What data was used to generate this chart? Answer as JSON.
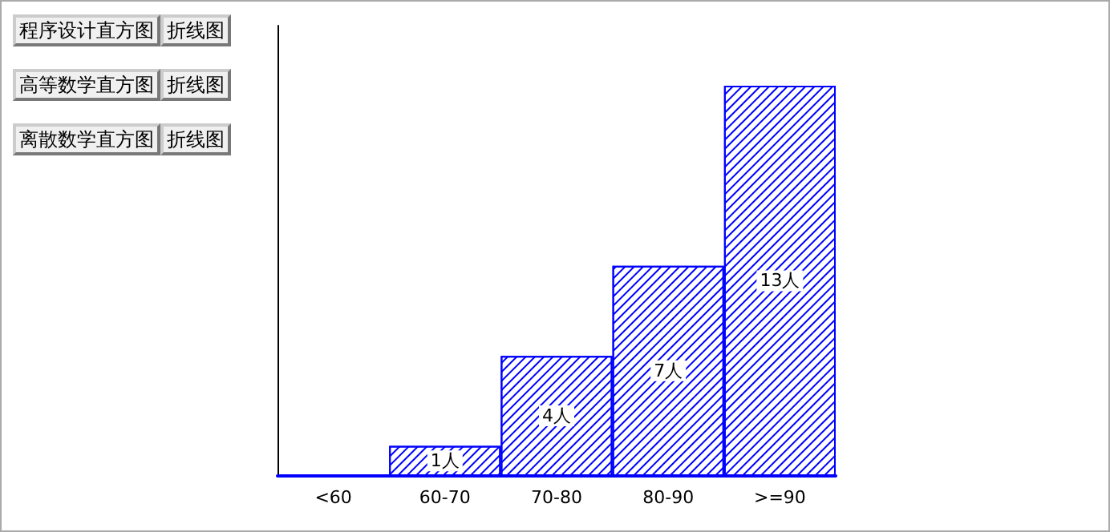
{
  "chart_data": {
    "type": "bar",
    "categories": [
      "<60",
      "60-70",
      "70-80",
      "80-90",
      ">=90"
    ],
    "values": [
      0,
      1,
      4,
      7,
      13
    ],
    "value_labels": [
      null,
      "1人",
      "4人",
      "7人",
      "13人"
    ],
    "color": "#0000ff",
    "annotations": [
      "程序设计直方图",
      "折线图",
      "高等数学直方图",
      "折线图",
      "离散数学直方图",
      "折线图"
    ],
    "grid": false
  }
}
